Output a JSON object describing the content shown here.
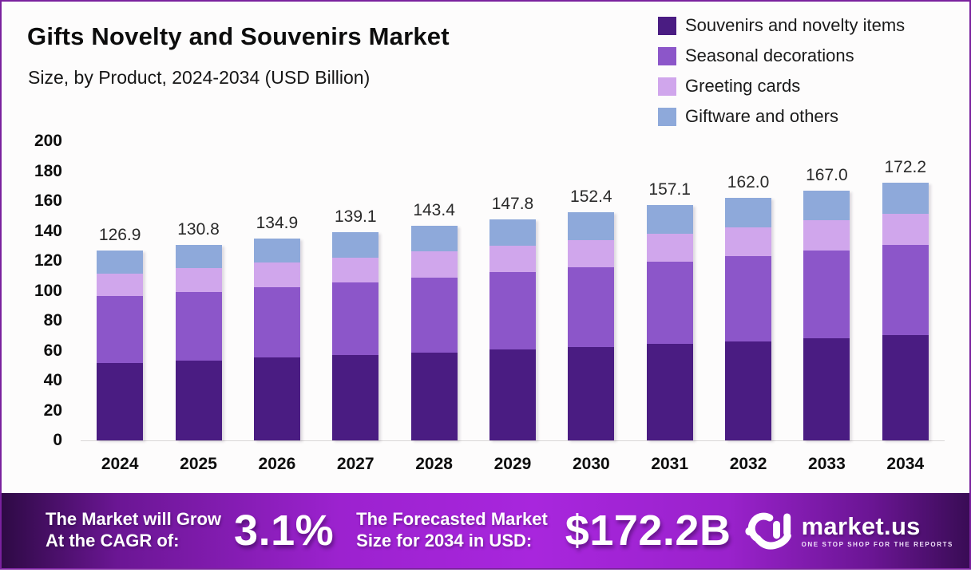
{
  "header": {
    "title": "Gifts Novelty and Souvenirs Market",
    "subtitle": "Size, by Product, 2024-2034 (USD Billion)"
  },
  "colors": {
    "frame_border": "#7a219e",
    "background": "#fdfcfc",
    "axis_line": "#d8d6d6",
    "souvenirs": "#4a1c82",
    "seasonal": "#8c56c9",
    "greeting": "#d0a6ec",
    "giftware": "#8ea9da"
  },
  "legend": [
    {
      "label": "Souvenirs and novelty items",
      "color": "#4a1c82"
    },
    {
      "label": "Seasonal decorations",
      "color": "#8c56c9"
    },
    {
      "label": "Greeting cards",
      "color": "#d0a6ec"
    },
    {
      "label": "Giftware and others",
      "color": "#8ea9da"
    }
  ],
  "chart_data": {
    "type": "bar",
    "stacked": true,
    "title": "Gifts Novelty and Souvenirs Market",
    "subtitle": "Size, by Product, 2024-2034 (USD Billion)",
    "xlabel": "",
    "ylabel": "USD Billion",
    "ylim": [
      0,
      200
    ],
    "yticks": [
      0,
      20,
      40,
      60,
      80,
      100,
      120,
      140,
      160,
      180,
      200
    ],
    "grid": false,
    "legend_position": "top-right",
    "categories": [
      "2024",
      "2025",
      "2026",
      "2027",
      "2028",
      "2029",
      "2030",
      "2031",
      "2032",
      "2033",
      "2034"
    ],
    "totals": [
      126.9,
      130.8,
      134.9,
      139.1,
      143.4,
      147.8,
      152.4,
      157.1,
      162.0,
      167.0,
      172.2
    ],
    "bar_labels": [
      "126.9",
      "130.8",
      "134.9",
      "139.1",
      "143.4",
      "147.8",
      "152.4",
      "157.1",
      "162.0",
      "167.0",
      "172.2"
    ],
    "series": [
      {
        "name": "Souvenirs and novelty items",
        "color": "#4a1c82",
        "values": [
          52.0,
          53.6,
          55.3,
          57.0,
          58.8,
          60.6,
          62.5,
          64.4,
          66.4,
          68.5,
          70.6
        ]
      },
      {
        "name": "Seasonal decorations",
        "color": "#8c56c9",
        "values": [
          44.4,
          45.8,
          47.2,
          48.7,
          50.2,
          51.7,
          53.3,
          55.0,
          56.7,
          58.5,
          60.3
        ]
      },
      {
        "name": "Greeting cards",
        "color": "#d0a6ec",
        "values": [
          15.2,
          15.7,
          16.2,
          16.7,
          17.2,
          17.7,
          18.3,
          18.9,
          19.4,
          20.0,
          20.7
        ]
      },
      {
        "name": "Giftware and others",
        "color": "#8ea9da",
        "values": [
          15.3,
          15.7,
          16.2,
          16.7,
          17.2,
          17.8,
          18.3,
          18.8,
          19.5,
          20.0,
          20.6
        ]
      }
    ]
  },
  "banner": {
    "cagr_label_line1": "The Market will Grow",
    "cagr_label_line2": "At the CAGR of:",
    "cagr_value": "3.1%",
    "forecast_label_line1": "The Forecasted Market",
    "forecast_label_line2": "Size for 2034 in USD:",
    "forecast_value": "$172.2B",
    "logo_name": "market.us",
    "logo_tagline": "ONE STOP SHOP FOR THE REPORTS"
  }
}
